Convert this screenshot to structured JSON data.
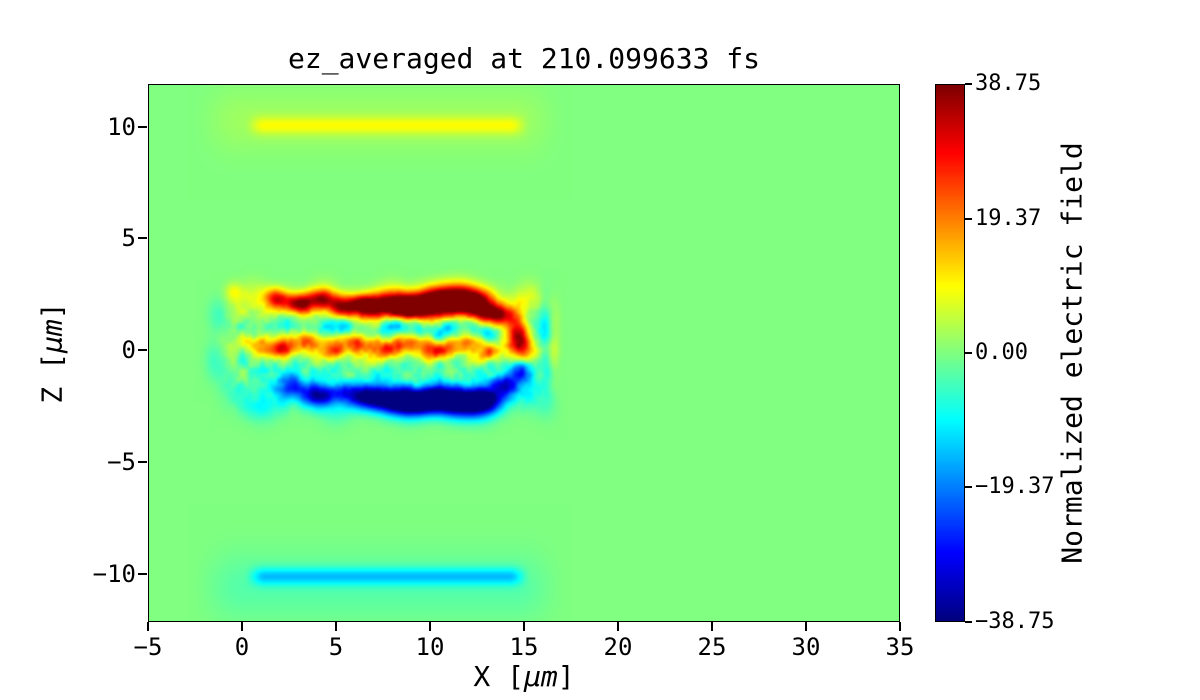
{
  "chart_data": {
    "type": "heatmap",
    "title": "ez_averaged at 210.099633 fs",
    "xlabel": "X [μm]",
    "ylabel": "Z [μm]",
    "colorbar_label": "Normalized electric field",
    "colormap": "jet",
    "xlim": [
      -5,
      35
    ],
    "zlim": [
      -12.15,
      11.9
    ],
    "clim": [
      -38.75,
      38.75
    ],
    "x_ticks": [
      -5,
      0,
      5,
      10,
      15,
      20,
      25,
      30,
      35
    ],
    "x_tick_labels": [
      "−5",
      "0",
      "5",
      "10",
      "15",
      "20",
      "25",
      "30",
      "35"
    ],
    "z_ticks": [
      10,
      5,
      0,
      -5,
      -10
    ],
    "z_tick_labels": [
      "10",
      "5",
      "0",
      "−5",
      "−10"
    ],
    "colorbar_ticks": [
      38.75,
      19.37,
      0,
      -19.37,
      -38.75
    ],
    "colorbar_tick_labels": [
      "38.75",
      "19.37",
      "0.00",
      "−19.37",
      "−38.75"
    ],
    "background_value": 0,
    "axis_label_parts": {
      "x": {
        "prefix": "X [",
        "unit": "μm",
        "suffix": "]"
      },
      "y": {
        "prefix": "Z [",
        "unit": "μm",
        "suffix": "]"
      }
    },
    "features": {
      "bands": [
        {
          "x0": 0.0,
          "x1": 15.4,
          "z": 10.08,
          "sz": 0.28,
          "v": 7.5,
          "taper": 1.2
        },
        {
          "x0": -3.0,
          "x1": 17.5,
          "z": 10.3,
          "sz": 1.0,
          "v": 2.4,
          "taper": 3.0
        },
        {
          "x0": 0.0,
          "x1": 15.4,
          "z": -10.15,
          "sz": 0.27,
          "v": -12,
          "taper": 1.2
        },
        {
          "x0": -3.0,
          "x1": 17.5,
          "z": -10.6,
          "sz": 1.05,
          "v": -3.2,
          "taper": 3.0
        }
      ],
      "ridges": [
        {
          "z": 2.0,
          "sz": 0.5,
          "v": 8,
          "wa": 0.3,
          "wk": 1.7,
          "ph": 0.5
        },
        {
          "z": 0.15,
          "sz": 0.38,
          "v": 6,
          "wa": 0.25,
          "wk": 2.1,
          "ph": 2.0
        },
        {
          "z": 0.95,
          "sz": 0.3,
          "v": -5,
          "wa": 0.25,
          "wk": 1.9,
          "ph": 4.0
        },
        {
          "z": -0.75,
          "sz": 0.3,
          "v": -4,
          "wa": 0.2,
          "wk": 2.3,
          "ph": 1.2
        },
        {
          "z": -2.15,
          "sz": 0.5,
          "v": -9,
          "wa": 0.3,
          "wk": 1.6,
          "ph": 3.1
        }
      ],
      "blobs": [
        [
          1.8,
          2.35,
          0.45,
          0.3,
          24
        ],
        [
          3.0,
          2.1,
          0.6,
          0.32,
          30
        ],
        [
          4.2,
          2.3,
          0.5,
          0.3,
          26
        ],
        [
          5.4,
          1.95,
          0.55,
          0.33,
          29
        ],
        [
          6.5,
          2.05,
          0.5,
          0.3,
          25
        ],
        [
          7.8,
          2.0,
          1.0,
          0.4,
          36
        ],
        [
          9.0,
          1.9,
          0.8,
          0.38,
          35
        ],
        [
          10.2,
          2.2,
          0.7,
          0.4,
          33
        ],
        [
          11.3,
          2.3,
          0.9,
          0.45,
          38
        ],
        [
          12.4,
          2.1,
          0.7,
          0.4,
          33
        ],
        [
          13.4,
          1.6,
          0.55,
          0.35,
          30
        ],
        [
          14.5,
          1.0,
          0.45,
          0.45,
          27
        ],
        [
          2.4,
          1.2,
          0.6,
          0.3,
          -9
        ],
        [
          5.0,
          1.05,
          0.7,
          0.3,
          -12
        ],
        [
          8.3,
          1.15,
          0.7,
          0.3,
          -11
        ],
        [
          10.8,
          0.95,
          0.6,
          0.3,
          -12
        ],
        [
          13.0,
          0.85,
          0.5,
          0.28,
          -9
        ],
        [
          0.7,
          0.35,
          0.45,
          0.3,
          14
        ],
        [
          2.1,
          0.1,
          0.5,
          0.3,
          22
        ],
        [
          3.5,
          0.4,
          0.5,
          0.3,
          16
        ],
        [
          4.9,
          0.0,
          0.55,
          0.3,
          23
        ],
        [
          6.2,
          0.3,
          0.5,
          0.3,
          18
        ],
        [
          7.6,
          0.1,
          0.6,
          0.3,
          20
        ],
        [
          9.0,
          0.3,
          0.5,
          0.3,
          16
        ],
        [
          10.4,
          0.0,
          0.55,
          0.3,
          22
        ],
        [
          11.8,
          0.3,
          0.5,
          0.3,
          17
        ],
        [
          13.0,
          -0.1,
          0.5,
          0.3,
          15
        ],
        [
          14.85,
          0.1,
          0.4,
          0.5,
          30
        ],
        [
          2.6,
          -1.6,
          0.6,
          0.33,
          -22
        ],
        [
          4.0,
          -2.0,
          0.6,
          0.35,
          -26
        ],
        [
          5.3,
          -1.85,
          0.55,
          0.33,
          -22
        ],
        [
          6.6,
          -2.1,
          0.6,
          0.35,
          -28
        ],
        [
          8.0,
          -2.25,
          0.85,
          0.4,
          -34
        ],
        [
          9.3,
          -2.3,
          0.9,
          0.42,
          -37
        ],
        [
          10.6,
          -2.2,
          0.7,
          0.4,
          -30
        ],
        [
          11.8,
          -2.4,
          0.85,
          0.45,
          -38
        ],
        [
          12.9,
          -2.2,
          0.6,
          0.38,
          -30
        ],
        [
          13.9,
          -1.5,
          0.5,
          0.35,
          -26
        ],
        [
          14.8,
          -0.85,
          0.4,
          0.4,
          -20
        ],
        [
          16.1,
          1.3,
          0.25,
          0.8,
          -9
        ],
        [
          16.6,
          0.2,
          0.2,
          0.9,
          5
        ],
        [
          16.2,
          -1.0,
          0.25,
          0.8,
          -7
        ],
        [
          -1.2,
          1.6,
          0.4,
          0.5,
          -6
        ],
        [
          -1.5,
          -0.5,
          0.35,
          0.6,
          -5
        ],
        [
          -0.5,
          2.6,
          0.3,
          0.3,
          8
        ]
      ],
      "noise": {
        "amp1": 5.5,
        "scale1": 0.55,
        "amp2": 2.5,
        "scale2": 0.22
      },
      "turbulence_envelope": {
        "x0": -1.8,
        "x1": 0.3,
        "x2": 14.8,
        "x3": 17.3,
        "z_width": 2.4
      }
    }
  }
}
